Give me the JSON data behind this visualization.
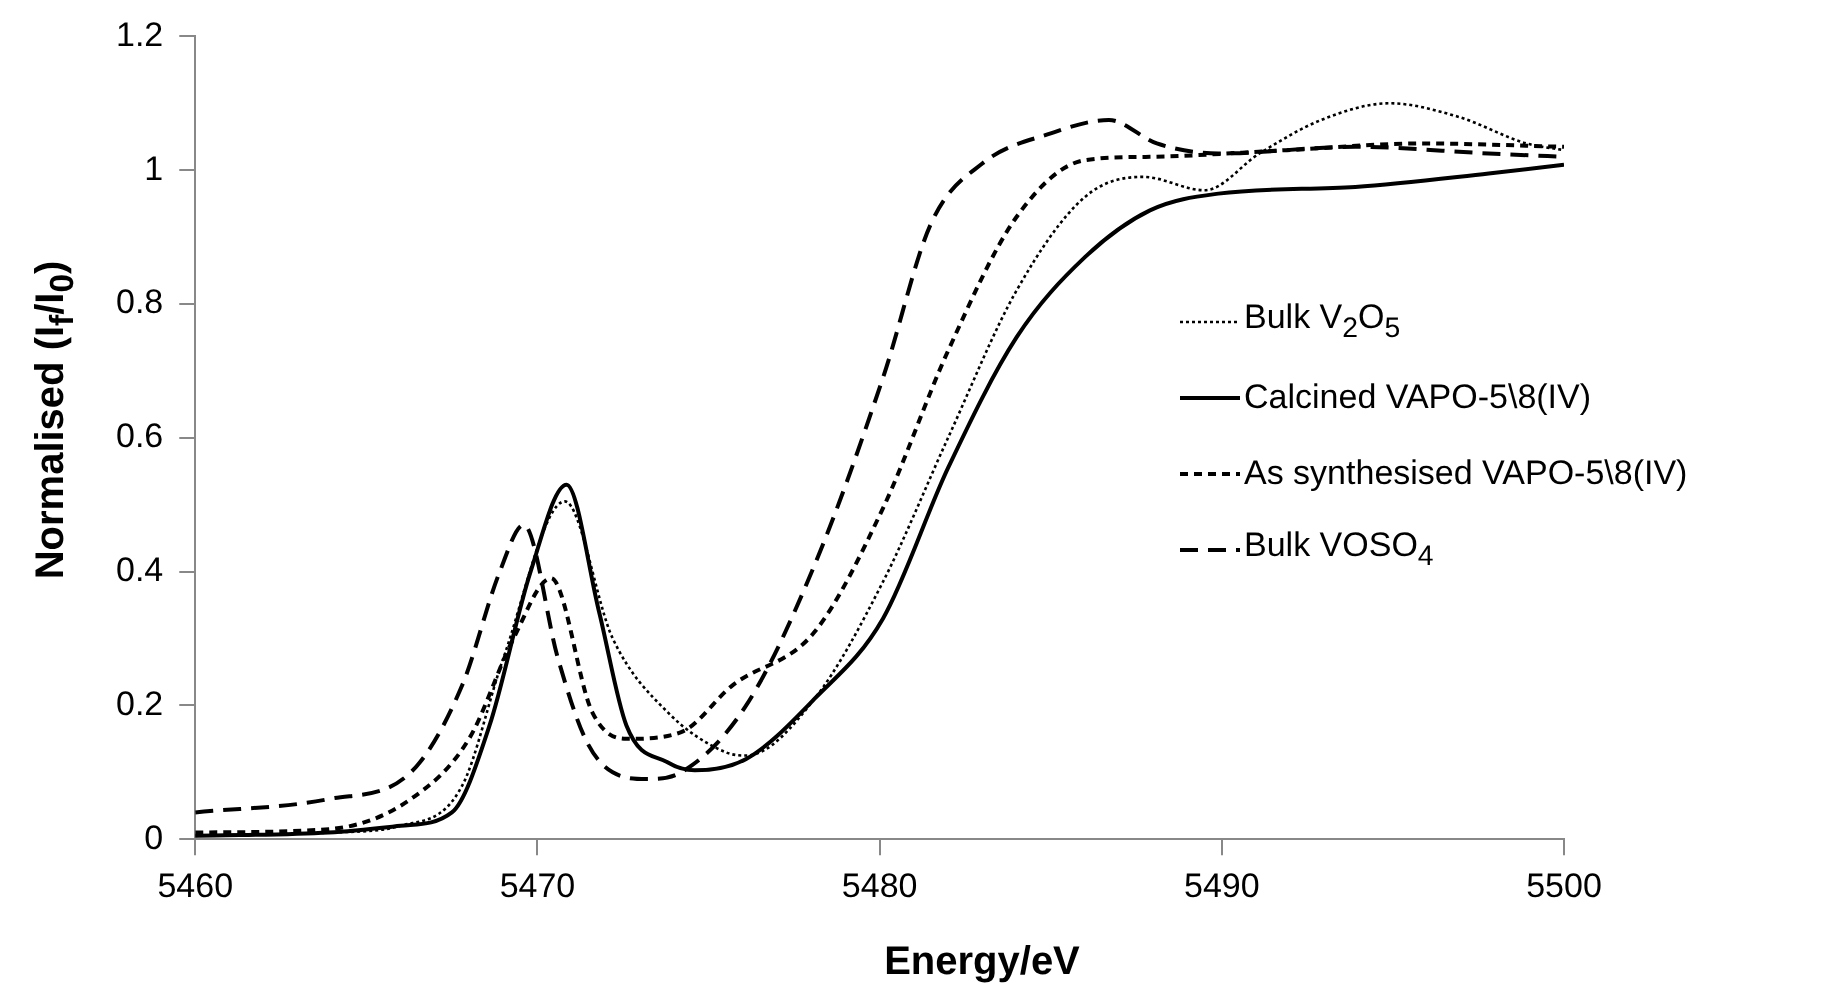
{
  "chart_data": {
    "type": "line",
    "xlabel": "Energy/eV",
    "ylabel": "Normalised (I$_{f}$/I$_{0}$)",
    "xlim": [
      5460,
      5500
    ],
    "xticks": [
      5460,
      5470,
      5480,
      5490,
      5500
    ],
    "ylim": [
      0,
      1.2
    ],
    "yticks": [
      0,
      0.2,
      0.4,
      0.6,
      0.8,
      1,
      1.2
    ],
    "grid": false,
    "legend": "right",
    "marker": "none",
    "series": [
      {
        "name": "Bulk V$_{2}$O$_{5}$",
        "color": "#000000",
        "line_style": "dotted",
        "x": [
          5460,
          5464,
          5466,
          5467.8,
          5469,
          5470.8,
          5472.2,
          5473.8,
          5475.5,
          5476.1,
          5478.1,
          5480.1,
          5482,
          5484,
          5486,
          5487.7,
          5489.5,
          5491.1,
          5492.9,
          5494.9,
          5496.9,
          5498.9,
          5500
        ],
        "values": [
          0.005,
          0.01,
          0.02,
          0.08,
          0.27,
          0.505,
          0.3,
          0.19,
          0.13,
          0.125,
          0.21,
          0.385,
          0.6,
          0.82,
          0.96,
          0.99,
          0.97,
          1.025,
          1.075,
          1.1,
          1.08,
          1.04,
          1.03
        ]
      },
      {
        "name": "Calcined VAPO-5\\8(IV)",
        "color": "#000000",
        "line_style": "solid",
        "x": [
          5460,
          5463.9,
          5466,
          5467.5,
          5468.6,
          5469.8,
          5470.85,
          5471.8,
          5472.6,
          5473.8,
          5474.6,
          5476.1,
          5478.1,
          5480.1,
          5482,
          5484,
          5486,
          5487.9,
          5489.9,
          5493.9,
          5497.8,
          5500
        ],
        "values": [
          0.005,
          0.01,
          0.02,
          0.04,
          0.17,
          0.4,
          0.53,
          0.34,
          0.17,
          0.115,
          0.103,
          0.12,
          0.21,
          0.33,
          0.555,
          0.75,
          0.87,
          0.94,
          0.965,
          0.975,
          0.995,
          1.008
        ]
      },
      {
        "name": "As synthesised VAPO-5\\8(IV)",
        "color": "#000000",
        "line_style": "dashed",
        "x": [
          5460,
          5463.9,
          5466.3,
          5468,
          5469.3,
          5470.4,
          5471.6,
          5472.6,
          5474.2,
          5475.7,
          5478.1,
          5480.1,
          5482,
          5484,
          5486,
          5487.9,
          5491.9,
          5495.8,
          5500
        ],
        "values": [
          0.01,
          0.015,
          0.06,
          0.15,
          0.3,
          0.39,
          0.19,
          0.15,
          0.16,
          0.23,
          0.31,
          0.495,
          0.73,
          0.93,
          1.015,
          1.02,
          1.03,
          1.04,
          1.035
        ]
      },
      {
        "name": "Bulk VOSO$_{4}$",
        "color": "#000000",
        "line_style": "dashed",
        "x": [
          5460,
          5463.9,
          5466.3,
          5467.8,
          5468.9,
          5469.6,
          5470.6,
          5471.4,
          5472.2,
          5473.2,
          5474.2,
          5476.1,
          5478.1,
          5480.1,
          5481.5,
          5483,
          5485,
          5486.7,
          5488.1,
          5489.9,
          5493.9,
          5497.8,
          5500
        ],
        "values": [
          0.04,
          0.06,
          0.1,
          0.23,
          0.4,
          0.47,
          0.27,
          0.15,
          0.1,
          0.09,
          0.1,
          0.2,
          0.41,
          0.69,
          0.92,
          1.01,
          1.055,
          1.075,
          1.04,
          1.025,
          1.035,
          1.025,
          1.02
        ]
      }
    ]
  }
}
